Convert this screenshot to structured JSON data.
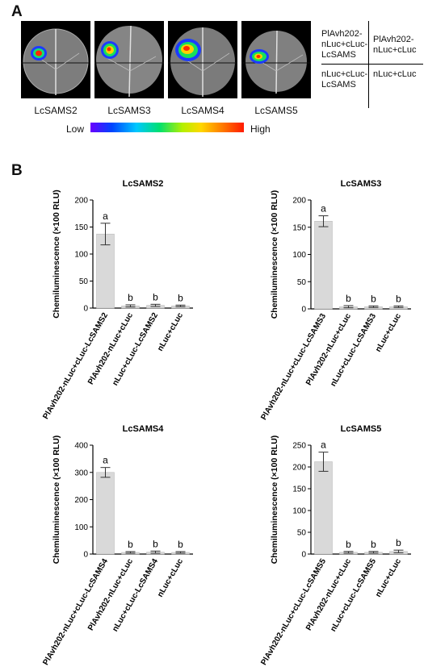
{
  "panel_a": {
    "letter": "A",
    "leaves": [
      {
        "label": "LcSAMS2"
      },
      {
        "label": "LcSAMS3"
      },
      {
        "label": "LcSAMS4"
      },
      {
        "label": "LcSAMS5"
      }
    ],
    "legend": {
      "low": "Low",
      "high": "High"
    },
    "grid": {
      "top_left": "PlAvh202-\nnLuc+cLuc-\nLcSAMS",
      "top_right": "PlAvh202-\nnLuc+cLuc",
      "bottom_left": "nLuc+cLuc-\nLcSAMS",
      "bottom_right": "nLuc+cLuc"
    }
  },
  "panel_b": {
    "letter": "B"
  },
  "chart_data": [
    {
      "type": "bar",
      "title": "LcSAMS2",
      "ylabel": "Chemiluminescence (×100 RLU)",
      "ylim": [
        0,
        200
      ],
      "yticks": [
        "0",
        "50",
        "100",
        "150",
        "200"
      ],
      "categories": [
        "PlAvh202-nLuc+cLuc-LcSAMS2",
        "PlAvh202-nLuc+cLuc",
        "nLuc+cLuc-LcSAMS2",
        "nLuc+cLuc"
      ],
      "values": [
        137,
        4,
        5,
        4
      ],
      "errors": [
        20,
        2,
        2,
        1.5
      ],
      "letters": [
        "a",
        "b",
        "b",
        "b"
      ]
    },
    {
      "type": "bar",
      "title": "LcSAMS3",
      "ylabel": "Chemiluminescence (×100 RLU)",
      "ylim": [
        0,
        200
      ],
      "yticks": [
        "0",
        "50",
        "100",
        "150",
        "200"
      ],
      "categories": [
        "PlAvh202-nLuc+cLuc-LcSAMS3",
        "PlAvh202-nLuc+cLuc",
        "nLuc+cLuc-LcSAMS3",
        "nLuc+cLuc"
      ],
      "values": [
        161,
        4,
        4,
        4
      ],
      "errors": [
        10,
        2,
        1.5,
        1.5
      ],
      "letters": [
        "a",
        "b",
        "b",
        "b"
      ]
    },
    {
      "type": "bar",
      "title": "LcSAMS4",
      "ylabel": "Chemiluminescence (×100 RLU)",
      "ylim": [
        0,
        400
      ],
      "yticks": [
        "0",
        "100",
        "200",
        "300",
        "400"
      ],
      "categories": [
        "PlAvh202-nLuc+cLuc-LcSAMS4",
        "PlAvh202-nLuc+cLuc",
        "nLuc+cLuc-LcSAMS4",
        "nLuc+cLuc"
      ],
      "values": [
        300,
        6,
        7,
        6
      ],
      "errors": [
        18,
        3,
        4,
        3
      ],
      "letters": [
        "a",
        "b",
        "b",
        "b"
      ]
    },
    {
      "type": "bar",
      "title": "LcSAMS5",
      "ylabel": "Chemiluminescence (×100 RLU)",
      "ylim": [
        0,
        250
      ],
      "yticks": [
        "0",
        "50",
        "100",
        "150",
        "200",
        "250"
      ],
      "categories": [
        "PlAvh202-nLuc+cLuc-LcSAMS5",
        "PlAvh202-nLuc+cLuc",
        "nLuc+cLuc-LcSAMS5",
        "nLuc+cLuc"
      ],
      "values": [
        212,
        4,
        4,
        6
      ],
      "errors": [
        22,
        2,
        2,
        3
      ],
      "letters": [
        "a",
        "b",
        "b",
        "b"
      ]
    }
  ],
  "colors": {
    "bar": "#d9d9d9",
    "bar_edge": "#bdbdbd",
    "axis": "#000000"
  }
}
